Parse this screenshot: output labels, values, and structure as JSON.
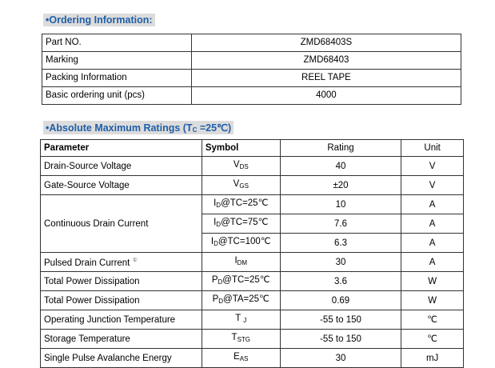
{
  "ordering": {
    "title": "•Ordering Information:",
    "rows": [
      {
        "label": "Part NO.",
        "value": "ZMD68403S"
      },
      {
        "label": "Marking",
        "value": "ZMD68403"
      },
      {
        "label": "Packing Information",
        "value": "REEL TAPE"
      },
      {
        "label": "Basic ordering unit (pcs)",
        "value": "4000"
      }
    ]
  },
  "ratings": {
    "title_main": "•Absolute Maximum Ratings  (T",
    "title_sub": "C",
    "title_end": " =25℃)",
    "headers": {
      "parameter": "Parameter",
      "symbol": "Symbol",
      "rating": "Rating",
      "unit": "Unit"
    },
    "rows": [
      {
        "parameter": "Drain-Source Voltage",
        "sym_main": "V",
        "sym_sub": "DS",
        "rating": "40",
        "unit": "V"
      },
      {
        "parameter": "Gate-Source Voltage",
        "sym_main": "V",
        "sym_sub": "GS",
        "rating": "±20",
        "unit": "V"
      },
      {
        "parameter": "Continuous Drain Current",
        "sub_rows": [
          {
            "sym_main": "I",
            "sym_sub": "D",
            "sym_cond": "@TC=25℃",
            "rating": "10",
            "unit": "A"
          },
          {
            "sym_main": "I",
            "sym_sub": "D",
            "sym_cond": "@TC=75℃",
            "rating": "7.6",
            "unit": "A"
          },
          {
            "sym_main": "I",
            "sym_sub": "D",
            "sym_cond": "@TC=100℃",
            "rating": "6.3",
            "unit": "A"
          }
        ]
      },
      {
        "parameter": "Pulsed Drain Current",
        "note_mark": "①",
        "sym_main": "I",
        "sym_sub": "DM",
        "rating": "30",
        "unit": "A"
      },
      {
        "parameter": "Total Power Dissipation",
        "sym_main": "P",
        "sym_sub": "D",
        "sym_cond": "@TC=25℃",
        "rating": "3.6",
        "unit": "W"
      },
      {
        "parameter": "Total Power Dissipation",
        "sym_main": "P",
        "sym_sub": "D",
        "sym_cond": "@TA=25℃",
        "rating": "0.69",
        "unit": "W"
      },
      {
        "parameter": "Operating Junction Temperature",
        "sym_main": "T",
        "sym_sub": "J",
        "rating": "-55 to 150",
        "unit": "℃"
      },
      {
        "parameter": "Storage Temperature",
        "sym_main": "T",
        "sym_sub": "STG",
        "rating": "-55 to 150",
        "unit": "℃"
      },
      {
        "parameter": "Single Pulse Avalanche Energy",
        "sym_main": "E",
        "sym_sub": "AS",
        "rating": "30",
        "unit": "mJ"
      }
    ]
  }
}
